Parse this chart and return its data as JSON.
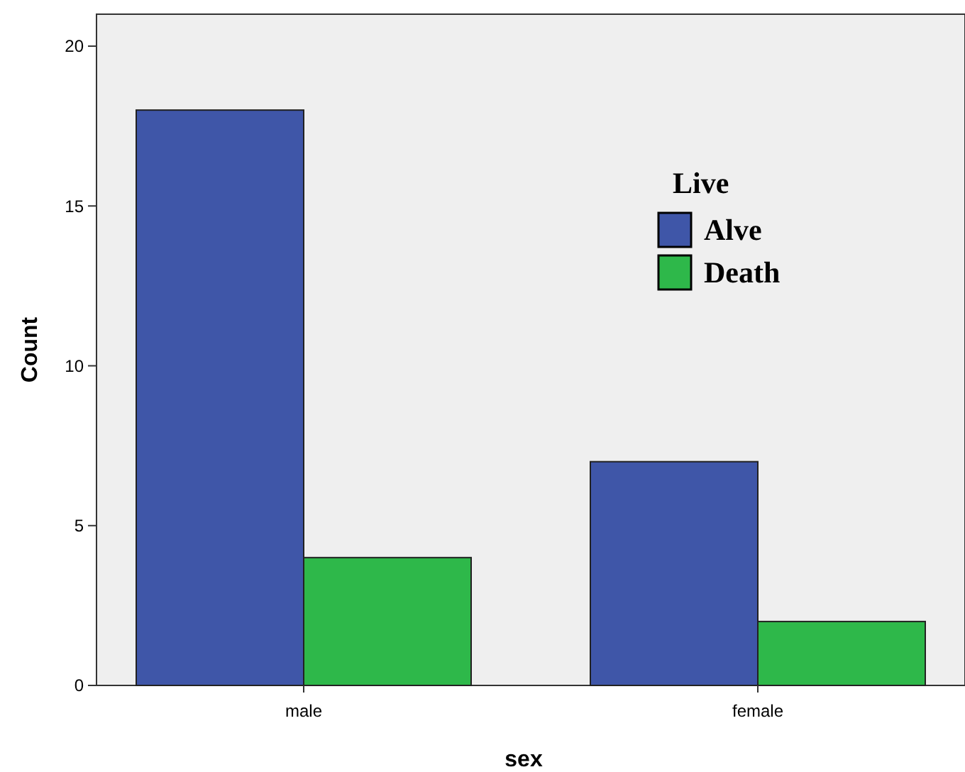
{
  "chart_data": {
    "type": "bar",
    "xlabel": "sex",
    "ylabel": "Count",
    "legend_title": "Live",
    "categories": [
      "male",
      "female"
    ],
    "series": [
      {
        "name": "Alve",
        "color": "#3f56a8",
        "values": [
          18,
          7
        ]
      },
      {
        "name": "Death",
        "color": "#2eb84a",
        "values": [
          4,
          2
        ]
      }
    ],
    "ylim": [
      0,
      21
    ],
    "yticks": [
      0,
      5,
      10,
      15,
      20
    ],
    "grid": false,
    "legend": "top right"
  }
}
